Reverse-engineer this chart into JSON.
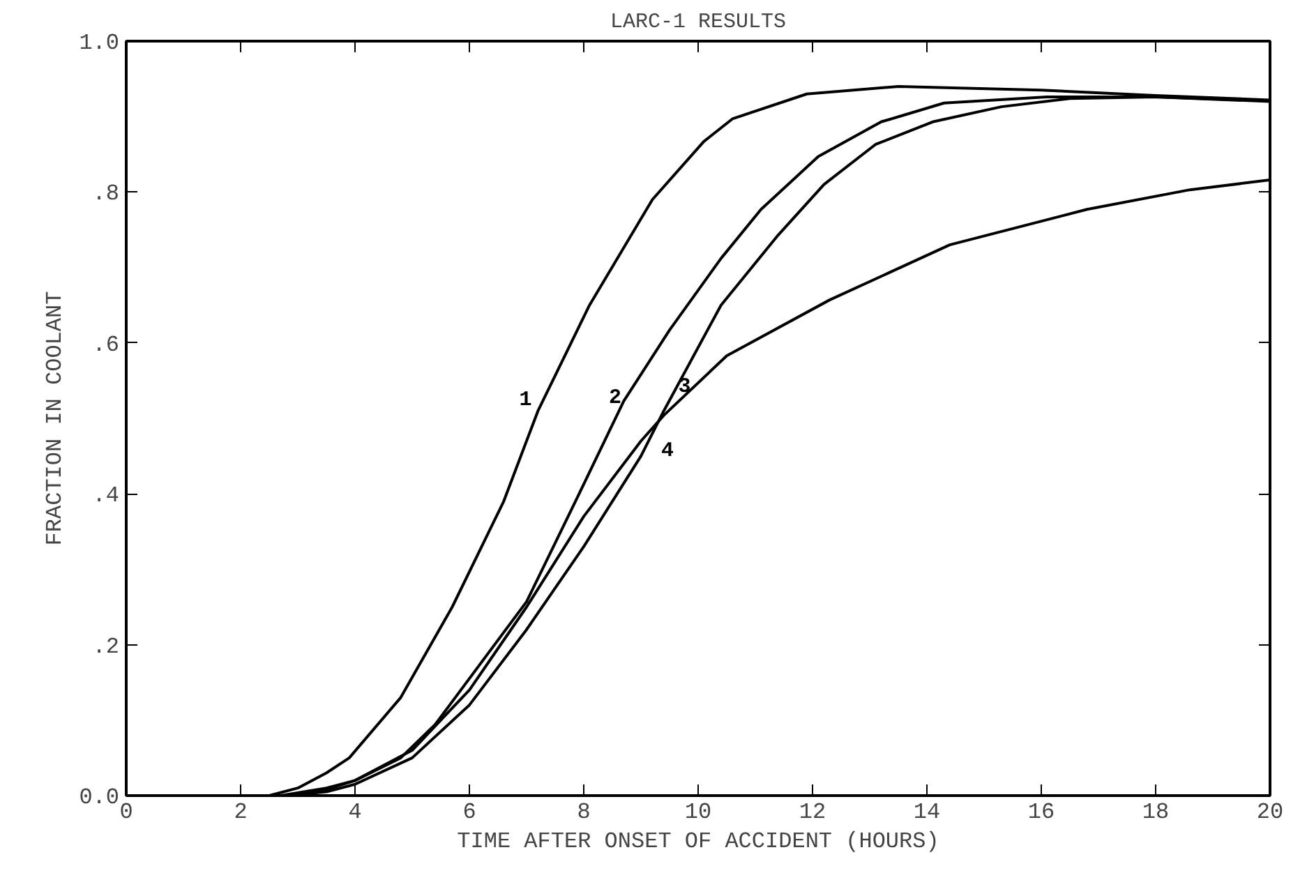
{
  "chart_data": {
    "type": "line",
    "title": "LARC-1 RESULTS",
    "xlabel": "TIME AFTER ONSET OF ACCIDENT (HOURS)",
    "ylabel": "FRACTION IN COOLANT",
    "xlim": [
      0,
      20
    ],
    "ylim": [
      0,
      1.0
    ],
    "xticks": [
      0,
      2,
      4,
      6,
      8,
      10,
      12,
      14,
      16,
      18,
      20
    ],
    "yticks": [
      {
        "value": 0,
        "label": "0.0"
      },
      {
        "value": 0.2,
        "label": ".2"
      },
      {
        "value": 0.4,
        "label": ".4"
      },
      {
        "value": 0.6,
        "label": ".6"
      },
      {
        "value": 0.8,
        "label": ".8"
      },
      {
        "value": 1.0,
        "label": "1.0"
      }
    ],
    "grid": false,
    "marker": "none",
    "line_style": "solid",
    "series": [
      {
        "color": "#000000",
        "x": [
          0,
          2,
          2.5,
          3,
          3.5,
          3.9,
          4.8,
          5.7,
          6.6,
          7.2,
          8.1,
          9.2,
          10.1,
          10.6,
          11.9,
          13.5,
          16,
          18,
          20
        ],
        "values": [
          0,
          0,
          0,
          0.01,
          0.03,
          0.05,
          0.13,
          0.25,
          0.39,
          0.51,
          0.65,
          0.79,
          0.867,
          0.897,
          0.93,
          0.94,
          0.935,
          0.928,
          0.922
        ]
      },
      {
        "color": "#000000",
        "x": [
          2.7,
          3.5,
          4,
          4.8,
          5.4,
          7.0,
          7.9,
          8.7,
          9.5,
          10.4,
          11.1,
          12.1,
          13.2,
          14.3,
          16.1,
          18,
          20
        ],
        "values": [
          0,
          0.01,
          0.02,
          0.05,
          0.094,
          0.257,
          0.397,
          0.523,
          0.617,
          0.712,
          0.777,
          0.847,
          0.893,
          0.918,
          0.926,
          0.926,
          0.921
        ]
      },
      {
        "color": "#000000",
        "x": [
          2.8,
          3.5,
          4,
          5,
          6,
          7,
          8,
          9,
          9.4,
          10.4,
          11.4,
          12.2,
          13.1,
          14.1,
          15.3,
          16.5,
          18,
          20
        ],
        "values": [
          0,
          0.005,
          0.015,
          0.05,
          0.12,
          0.22,
          0.33,
          0.45,
          0.51,
          0.65,
          0.743,
          0.81,
          0.863,
          0.893,
          0.913,
          0.924,
          0.926,
          0.92
        ]
      },
      {
        "color": "#000000",
        "x": [
          2.9,
          3.5,
          4,
          5,
          6,
          7,
          8,
          9,
          9.4,
          10.5,
          12.3,
          14.4,
          16.8,
          18.6,
          20
        ],
        "values": [
          0,
          0.008,
          0.02,
          0.06,
          0.14,
          0.25,
          0.37,
          0.47,
          0.504,
          0.583,
          0.657,
          0.73,
          0.777,
          0.803,
          0.816
        ]
      }
    ],
    "annotations": [
      {
        "text": "1",
        "x": 7.19,
        "y": 0.527
      },
      {
        "text": "2",
        "x": 8.78,
        "y": 0.53
      },
      {
        "text": "3",
        "x": 9.36,
        "y": 0.52
      },
      {
        "text": "4",
        "x": 9.16,
        "y": 0.476
      }
    ]
  }
}
